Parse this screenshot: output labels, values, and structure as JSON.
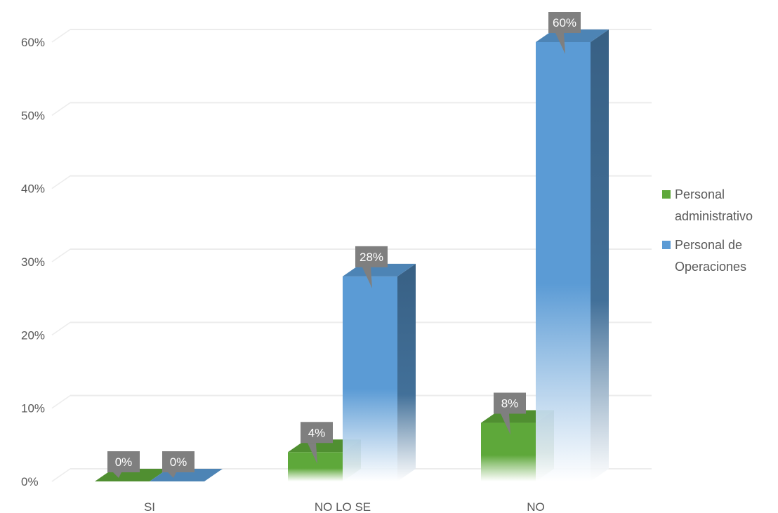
{
  "chart_data": {
    "type": "bar",
    "title": "",
    "xlabel": "",
    "ylabel": "",
    "categories": [
      "SI",
      "NO LO SE",
      "NO"
    ],
    "series": [
      {
        "name": "Personal administrativo",
        "values": [
          0,
          4,
          8
        ],
        "labels": [
          "0%",
          "4%",
          "8%"
        ],
        "color": "#5ea83a",
        "legend_lines": [
          "Personal",
          "administrativo"
        ]
      },
      {
        "name": "Personal de Operaciones",
        "values": [
          0,
          28,
          60
        ],
        "labels": [
          "0%",
          "28%",
          "60%"
        ],
        "color": "#5b9bd5",
        "legend_lines": [
          "Personal de",
          "Operaciones"
        ]
      }
    ],
    "ylim": [
      0,
      60
    ],
    "yticks": [
      0,
      10,
      20,
      30,
      40,
      50,
      60
    ],
    "ytick_labels": [
      "0%",
      "10%",
      "20%",
      "30%",
      "40%",
      "50%",
      "60%"
    ],
    "grid": true,
    "legend_position": "right",
    "style": "3d-clustered-column"
  }
}
